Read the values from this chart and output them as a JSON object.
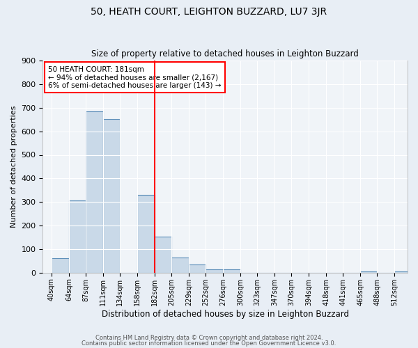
{
  "title": "50, HEATH COURT, LEIGHTON BUZZARD, LU7 3JR",
  "subtitle": "Size of property relative to detached houses in Leighton Buzzard",
  "xlabel": "Distribution of detached houses by size in Leighton Buzzard",
  "ylabel": "Number of detached properties",
  "bin_labels": [
    "40sqm",
    "64sqm",
    "87sqm",
    "111sqm",
    "134sqm",
    "158sqm",
    "182sqm",
    "205sqm",
    "229sqm",
    "252sqm",
    "276sqm",
    "300sqm",
    "323sqm",
    "347sqm",
    "370sqm",
    "394sqm",
    "418sqm",
    "441sqm",
    "465sqm",
    "488sqm",
    "512sqm"
  ],
  "bin_edges": [
    40,
    64,
    87,
    111,
    134,
    158,
    182,
    205,
    229,
    252,
    276,
    300,
    323,
    347,
    370,
    394,
    418,
    441,
    465,
    488,
    512
  ],
  "bar_heights": [
    62,
    307,
    685,
    651,
    0,
    330,
    153,
    65,
    35,
    15,
    15,
    0,
    0,
    0,
    0,
    0,
    0,
    0,
    5,
    0,
    5
  ],
  "bar_color": "#c9d9e8",
  "bar_edge_color": "#5b8db8",
  "vline_x": 182,
  "vline_color": "red",
  "ylim": [
    0,
    900
  ],
  "yticks": [
    0,
    100,
    200,
    300,
    400,
    500,
    600,
    700,
    800,
    900
  ],
  "annotation_text": "50 HEATH COURT: 181sqm\n← 94% of detached houses are smaller (2,167)\n6% of semi-detached houses are larger (143) →",
  "annotation_box_color": "white",
  "annotation_box_edge": "red",
  "footer1": "Contains HM Land Registry data © Crown copyright and database right 2024.",
  "footer2": "Contains public sector information licensed under the Open Government Licence v3.0.",
  "bg_color": "#e8eef5",
  "plot_bg_color": "#f0f4f8",
  "grid_color": "white",
  "xlim_left": 28,
  "xlim_right": 530
}
